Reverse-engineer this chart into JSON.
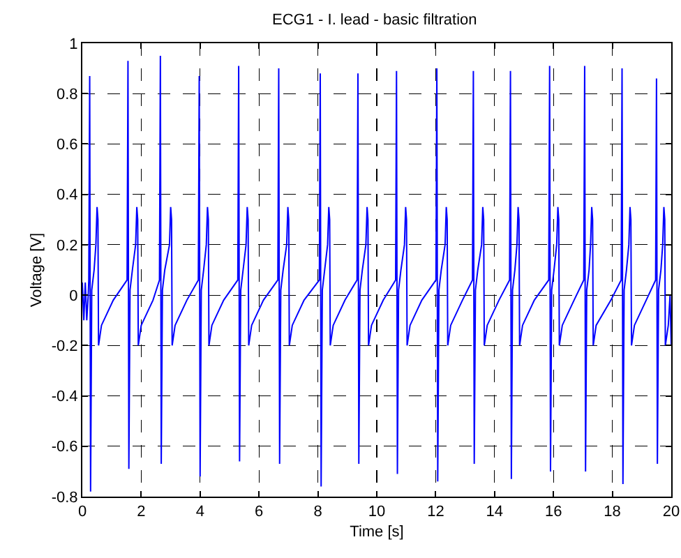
{
  "chart_data": {
    "type": "line",
    "title": "ECG1 - I. lead - basic filtration",
    "xlabel": "Time [s]",
    "ylabel": "Voltage [V]",
    "xlim": [
      0,
      20
    ],
    "xticks": [
      0,
      2,
      4,
      6,
      8,
      10,
      12,
      14,
      16,
      18,
      20
    ],
    "ylim": [
      -0.8,
      1
    ],
    "yticks": [
      -0.8,
      -0.6,
      -0.4,
      -0.2,
      0,
      0.2,
      0.4,
      0.6,
      0.8,
      1
    ],
    "grid": true,
    "marker": "none",
    "line_style": "solid",
    "x": [
      0,
      0.05,
      0.1,
      0.15,
      0.2,
      0.22,
      0.25,
      0.28,
      0.32,
      0.4,
      0.46,
      0.5,
      0.53,
      0.55,
      0.65,
      1.05,
      1.52,
      1.55,
      1.58,
      1.62,
      1.7,
      1.81,
      1.85,
      1.88,
      1.9,
      2.0,
      2.4,
      2.62,
      2.65,
      2.68,
      2.72,
      2.8,
      2.96,
      3.0,
      3.03,
      3.05,
      3.15,
      3.55,
      3.94,
      3.97,
      4.0,
      4.04,
      4.12,
      4.21,
      4.25,
      4.28,
      4.3,
      4.4,
      4.8,
      5.28,
      5.31,
      5.34,
      5.38,
      5.46,
      5.56,
      5.6,
      5.63,
      5.65,
      5.75,
      6.15,
      6.64,
      6.67,
      6.7,
      6.74,
      6.82,
      6.94,
      6.98,
      7.01,
      7.03,
      7.13,
      7.53,
      8.05,
      8.08,
      8.11,
      8.15,
      8.23,
      8.33,
      8.37,
      8.4,
      8.42,
      8.52,
      8.92,
      9.33,
      9.36,
      9.39,
      9.43,
      9.51,
      9.63,
      9.67,
      9.7,
      9.72,
      9.82,
      10.22,
      10.64,
      10.67,
      10.7,
      10.74,
      10.82,
      10.94,
      10.98,
      11.01,
      11.03,
      11.13,
      11.53,
      12.01,
      12.04,
      12.07,
      12.11,
      12.19,
      12.32,
      12.36,
      12.39,
      12.41,
      12.51,
      12.91,
      13.25,
      13.28,
      13.31,
      13.35,
      13.43,
      13.56,
      13.6,
      13.63,
      13.65,
      13.75,
      14.15,
      14.51,
      14.54,
      14.57,
      14.61,
      14.69,
      14.76,
      14.8,
      14.83,
      14.85,
      14.95,
      15.35,
      15.84,
      15.87,
      15.9,
      15.94,
      16.02,
      16.11,
      16.15,
      16.18,
      16.2,
      16.3,
      16.7,
      17.03,
      17.06,
      17.09,
      17.13,
      17.21,
      17.26,
      17.3,
      17.33,
      17.35,
      17.45,
      17.95,
      18.3,
      18.33,
      18.36,
      18.4,
      18.48,
      18.56,
      18.6,
      18.63,
      18.65,
      18.75,
      19.15,
      19.47,
      19.5,
      19.53,
      19.57,
      19.65,
      19.71,
      19.75,
      19.78,
      19.8,
      19.9,
      19.96,
      20
    ],
    "series": [
      {
        "color": "#0000ff",
        "values": [
          0.05,
          -0.1,
          0.05,
          -0.1,
          0,
          0.06,
          0.87,
          -0.78,
          0.02,
          0.1,
          0.2,
          0.35,
          0.3,
          -0.2,
          -0.12,
          -0.02,
          0.06,
          0.93,
          -0.69,
          0.02,
          0.1,
          0.2,
          0.35,
          0.3,
          -0.2,
          -0.12,
          -0.02,
          0.06,
          0.95,
          -0.67,
          0.02,
          0.1,
          0.2,
          0.35,
          0.3,
          -0.2,
          -0.12,
          -0.02,
          0.06,
          0.87,
          -0.72,
          0.02,
          0.1,
          0.2,
          0.35,
          0.3,
          -0.2,
          -0.12,
          -0.02,
          0.06,
          0.91,
          -0.66,
          0.02,
          0.1,
          0.2,
          0.35,
          0.3,
          -0.2,
          -0.12,
          -0.02,
          0.06,
          0.9,
          -0.67,
          0.02,
          0.1,
          0.2,
          0.35,
          0.3,
          -0.2,
          -0.12,
          -0.02,
          0.06,
          0.88,
          -0.76,
          0.02,
          0.1,
          0.2,
          0.35,
          0.3,
          -0.2,
          -0.12,
          -0.02,
          0.06,
          0.88,
          -0.67,
          0.02,
          0.1,
          0.2,
          0.35,
          0.3,
          -0.2,
          -0.12,
          -0.02,
          0.06,
          0.89,
          -0.71,
          0.02,
          0.1,
          0.2,
          0.35,
          0.3,
          -0.2,
          -0.12,
          -0.02,
          0.06,
          0.9,
          -0.74,
          0.02,
          0.1,
          0.2,
          0.35,
          0.3,
          -0.2,
          -0.12,
          -0.02,
          0.06,
          0.89,
          -0.67,
          0.02,
          0.1,
          0.2,
          0.35,
          0.3,
          -0.2,
          -0.12,
          -0.02,
          0.06,
          0.89,
          -0.73,
          0.02,
          0.1,
          0.2,
          0.35,
          0.3,
          -0.2,
          -0.12,
          -0.02,
          0.06,
          0.91,
          -0.7,
          0.02,
          0.1,
          0.2,
          0.35,
          0.3,
          -0.2,
          -0.12,
          -0.02,
          0.06,
          0.91,
          -0.7,
          0.02,
          0.1,
          0.2,
          0.35,
          0.3,
          -0.2,
          -0.12,
          -0.02,
          0.06,
          0.9,
          -0.75,
          0.02,
          0.1,
          0.2,
          0.35,
          0.3,
          -0.2,
          -0.12,
          -0.02,
          0.06,
          0.86,
          -0.67,
          0.02,
          0.1,
          0.2,
          0.35,
          0.3,
          -0.2,
          -0.12,
          0,
          -0.2
        ]
      }
    ]
  }
}
